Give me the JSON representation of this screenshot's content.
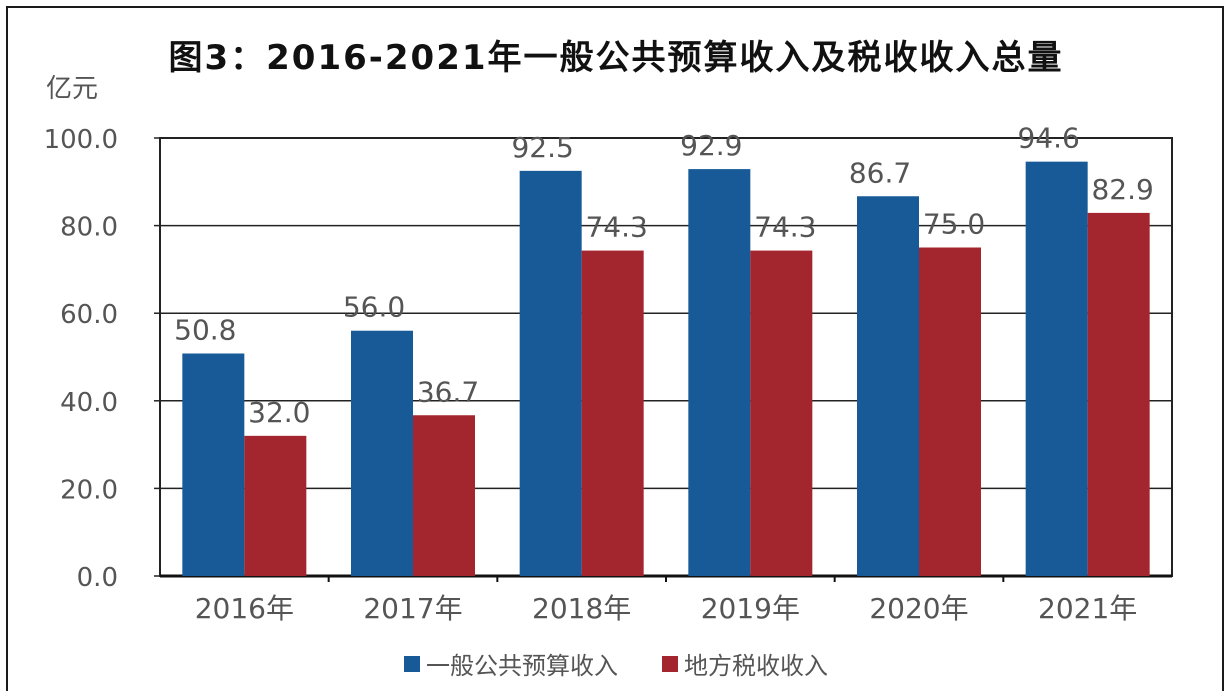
{
  "title": "图3：2016-2021年一般公共预算收入及税收收入总量",
  "unit": "亿元",
  "chart_data": {
    "type": "bar",
    "title": "图3：2016-2021年一般公共预算收入及税收收入总量",
    "ylabel": "亿元",
    "xlabel": "",
    "ylim": [
      0,
      100
    ],
    "yticks": [
      "0.0",
      "20.0",
      "40.0",
      "60.0",
      "80.0",
      "100.0"
    ],
    "grid": true,
    "legend_position": "bottom",
    "categories": [
      "2016年",
      "2017年",
      "2018年",
      "2019年",
      "2020年",
      "2021年"
    ],
    "series": [
      {
        "name": "一般公共预算收入",
        "color": "#175A97",
        "values": [
          50.8,
          56.0,
          92.5,
          92.9,
          86.7,
          94.6
        ],
        "labels": [
          "50.8",
          "56.0",
          "92.5",
          "92.9",
          "86.7",
          "94.6"
        ]
      },
      {
        "name": "地方税收收入",
        "color": "#A3262E",
        "values": [
          32.0,
          36.7,
          74.3,
          74.3,
          75.0,
          82.9
        ],
        "labels": [
          "32.0",
          "36.7",
          "74.3",
          "74.3",
          "75.0",
          "82.9"
        ]
      }
    ]
  }
}
